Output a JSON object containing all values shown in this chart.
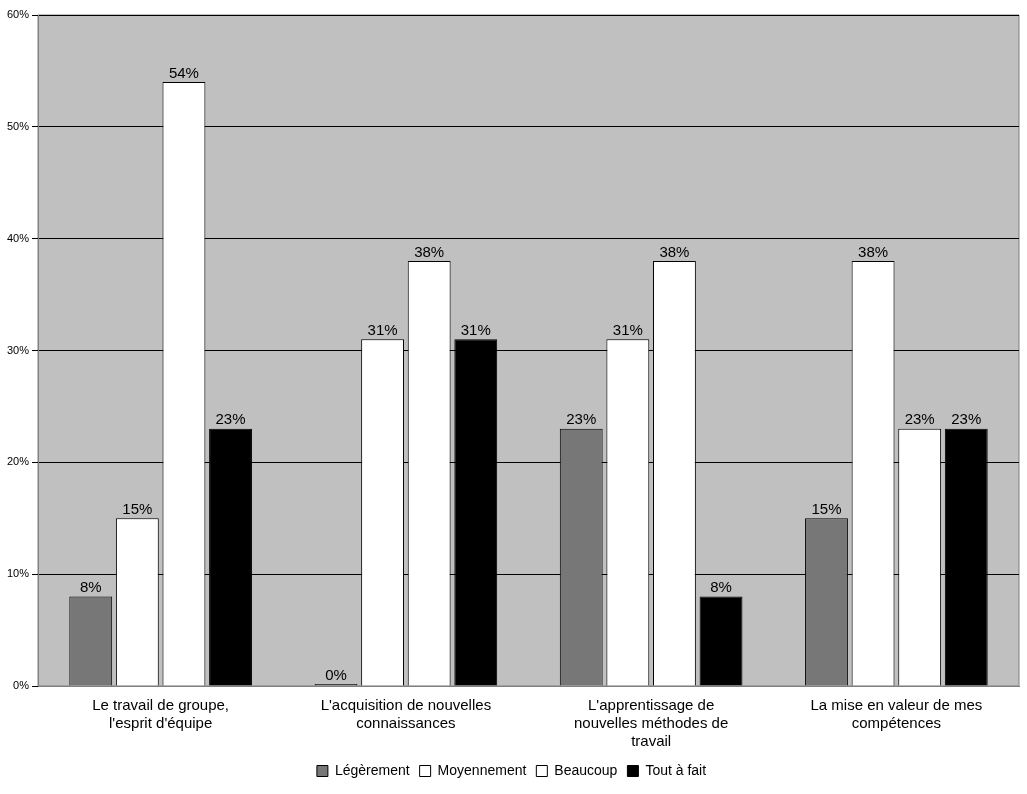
{
  "chart_data": {
    "type": "bar",
    "categories": [
      "Le travail de groupe, l'esprit d'équipe",
      "L'acquisition de nouvelles connaissances",
      "L'apprentissage de nouvelles méthodes de travail",
      "La mise en valeur de mes compétences"
    ],
    "series": [
      {
        "name": "Légèrement",
        "color": "#777777",
        "values": [
          8,
          0,
          23,
          15
        ],
        "value_labels": [
          "8%",
          "0%",
          "23%",
          "15%"
        ]
      },
      {
        "name": "Moyennement",
        "color": "#ffffff",
        "values": [
          15,
          31,
          31,
          38
        ],
        "value_labels": [
          "15%",
          "31%",
          "31%",
          "38%"
        ]
      },
      {
        "name": "Beaucoup",
        "color": "#ffffff",
        "values": [
          54,
          38,
          38,
          23
        ],
        "value_labels": [
          "54%",
          "38%",
          "38%",
          "23%"
        ]
      },
      {
        "name": "Tout à fait",
        "color": "#000000",
        "values": [
          23,
          31,
          8,
          23
        ],
        "value_labels": [
          "23%",
          "31%",
          "8%",
          "23%"
        ]
      }
    ],
    "ylim": [
      0,
      60
    ],
    "yticks": [
      {
        "value": 0,
        "label": "0%"
      },
      {
        "value": 10,
        "label": "10%"
      },
      {
        "value": 20,
        "label": "20%"
      },
      {
        "value": 30,
        "label": "30%"
      },
      {
        "value": 40,
        "label": "40%"
      },
      {
        "value": 50,
        "label": "50%"
      },
      {
        "value": 60,
        "label": "60%"
      }
    ],
    "grid": "y",
    "legend": "bottom"
  }
}
